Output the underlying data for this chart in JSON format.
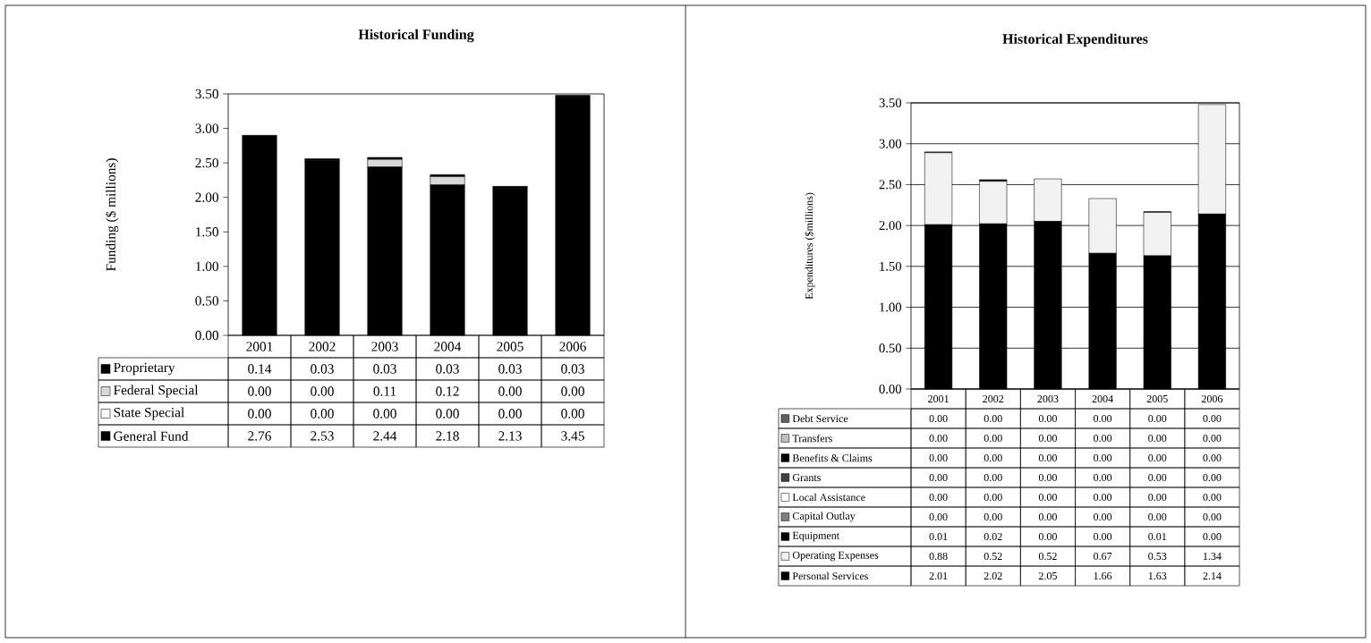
{
  "chart_data": [
    {
      "type": "bar",
      "stacked": true,
      "title": "Historical Funding",
      "ylabel": "Funding        ($ millions)",
      "categories": [
        "2001",
        "2002",
        "2003",
        "2004",
        "2005",
        "2006"
      ],
      "series": [
        {
          "name": "General Fund",
          "color": "#000000",
          "values": [
            2.76,
            2.53,
            2.44,
            2.18,
            2.13,
            3.45
          ],
          "value_labels": [
            "2.76",
            "2.53",
            "2.44",
            "2.18",
            "2.13",
            "3.45"
          ]
        },
        {
          "name": "State Special",
          "color": "#ffffff",
          "values": [
            0,
            0,
            0,
            0,
            0,
            0
          ],
          "value_labels": [
            "0.00",
            "0.00",
            "0.00",
            "0.00",
            "0.00",
            "0.00"
          ]
        },
        {
          "name": "Federal Special",
          "color": "#d9d9d9",
          "values": [
            0,
            0,
            0.11,
            0.12,
            0,
            0
          ],
          "value_labels": [
            "0.00",
            "0.00",
            "0.11",
            "0.12",
            "0.00",
            "0.00"
          ]
        },
        {
          "name": "Proprietary",
          "color": "#000000",
          "values": [
            0.14,
            0.03,
            0.03,
            0.03,
            0.03,
            0.03
          ],
          "value_labels": [
            "0.14",
            "0.03",
            "0.03",
            "0.03",
            "0.03",
            "0.03"
          ]
        }
      ],
      "ylim": [
        0,
        3.5
      ],
      "yticks": [
        {
          "value": 0,
          "label": "0.00"
        },
        {
          "value": 0.5,
          "label": "0.50"
        },
        {
          "value": 1,
          "label": "1.00"
        },
        {
          "value": 1.5,
          "label": "1.50"
        },
        {
          "value": 2,
          "label": "2.00"
        },
        {
          "value": 2.5,
          "label": "2.50"
        },
        {
          "value": 3,
          "label": "3.00"
        },
        {
          "value": 3.5,
          "label": "3.50"
        }
      ],
      "legend": "bottom"
    },
    {
      "type": "bar",
      "stacked": true,
      "title": "Historical Expenditures",
      "ylabel": "Expenditures        ($millions)",
      "categories": [
        "2001",
        "2002",
        "2003",
        "2004",
        "2005",
        "2006"
      ],
      "series": [
        {
          "name": "Personal Services",
          "color": "#000000",
          "values": [
            2.01,
            2.02,
            2.05,
            1.66,
            1.63,
            2.14
          ],
          "value_labels": [
            "2.01",
            "2.02",
            "2.05",
            "1.66",
            "1.63",
            "2.14"
          ]
        },
        {
          "name": "Operating Expenses",
          "color": "#f2f2f2",
          "values": [
            0.88,
            0.52,
            0.52,
            0.67,
            0.53,
            1.34
          ],
          "value_labels": [
            "0.88",
            "0.52",
            "0.52",
            "0.67",
            "0.53",
            "1.34"
          ]
        },
        {
          "name": "Equipment",
          "color": "#000000",
          "values": [
            0.01,
            0.02,
            0,
            0,
            0.01,
            0
          ],
          "value_labels": [
            "0.01",
            "0.02",
            "0.00",
            "0.00",
            "0.01",
            "0.00"
          ]
        },
        {
          "name": "Capital Outlay",
          "color": "#808080",
          "values": [
            0,
            0,
            0,
            0,
            0,
            0
          ],
          "value_labels": [
            "0.00",
            "0.00",
            "0.00",
            "0.00",
            "0.00",
            "0.00"
          ]
        },
        {
          "name": "Local Assistance",
          "color": "#ffffff",
          "values": [
            0,
            0,
            0,
            0,
            0,
            0
          ],
          "value_labels": [
            "0.00",
            "0.00",
            "0.00",
            "0.00",
            "0.00",
            "0.00"
          ]
        },
        {
          "name": "Grants",
          "color": "#404040",
          "values": [
            0,
            0,
            0,
            0,
            0,
            0
          ],
          "value_labels": [
            "0.00",
            "0.00",
            "0.00",
            "0.00",
            "0.00",
            "0.00"
          ]
        },
        {
          "name": "Benefits & Claims",
          "color": "#000000",
          "values": [
            0,
            0,
            0,
            0,
            0,
            0
          ],
          "value_labels": [
            "0.00",
            "0.00",
            "0.00",
            "0.00",
            "0.00",
            "0.00"
          ]
        },
        {
          "name": "Transfers",
          "color": "#bfbfbf",
          "values": [
            0,
            0,
            0,
            0,
            0,
            0
          ],
          "value_labels": [
            "0.00",
            "0.00",
            "0.00",
            "0.00",
            "0.00",
            "0.00"
          ]
        },
        {
          "name": "Debt Service",
          "color": "#606060",
          "values": [
            0,
            0,
            0,
            0,
            0,
            0
          ],
          "value_labels": [
            "0.00",
            "0.00",
            "0.00",
            "0.00",
            "0.00",
            "0.00"
          ]
        }
      ],
      "ylim": [
        0,
        3.5
      ],
      "yticks": [
        {
          "value": 0,
          "label": "0.00"
        },
        {
          "value": 0.5,
          "label": "0.50"
        },
        {
          "value": 1,
          "label": "1.00"
        },
        {
          "value": 1.5,
          "label": "1.50"
        },
        {
          "value": 2,
          "label": "2.00"
        },
        {
          "value": 2.5,
          "label": "2.50"
        },
        {
          "value": 3,
          "label": "3.00"
        },
        {
          "value": 3.5,
          "label": "3.50"
        }
      ],
      "grid": "y",
      "legend": "bottom"
    }
  ]
}
